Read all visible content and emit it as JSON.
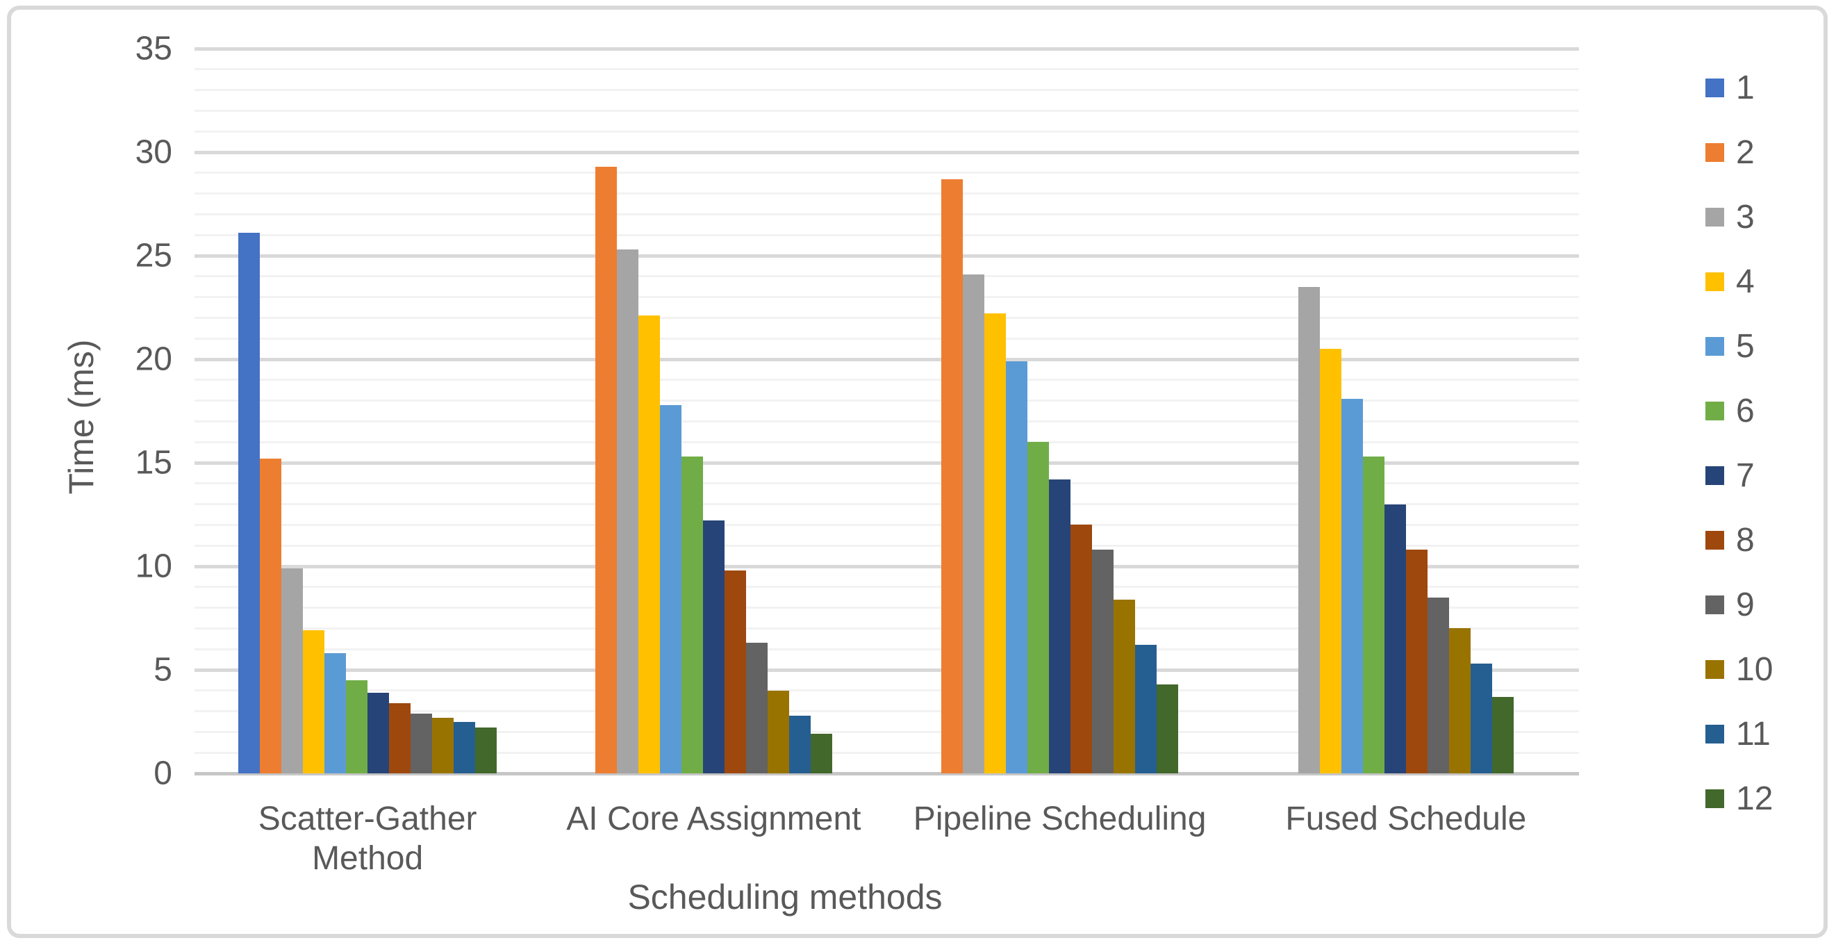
{
  "chart_data": {
    "type": "bar",
    "title": "",
    "xlabel": "Scheduling methods",
    "ylabel": "Time (ms)",
    "categories": [
      "Scatter-Gather Method",
      "AI Core Assignment",
      "Pipeline Scheduling",
      "Fused Schedule"
    ],
    "category_label_lines": [
      [
        "Scatter-Gather",
        "Method"
      ],
      [
        "AI Core Assignment"
      ],
      [
        "Pipeline Scheduling"
      ],
      [
        "Fused Schedule"
      ]
    ],
    "ylim": [
      0,
      35
    ],
    "y_tick_labels": [
      "0",
      "5",
      "10",
      "15",
      "20",
      "25",
      "30",
      "35"
    ],
    "y_major_step": 5,
    "y_minor_step": 1,
    "grid": true,
    "legend_position": "right",
    "series": [
      {
        "name": "1",
        "color": "#4472C4",
        "values": [
          26.1,
          null,
          null,
          null
        ]
      },
      {
        "name": "2",
        "color": "#ED7D31",
        "values": [
          15.2,
          29.3,
          28.7,
          null
        ]
      },
      {
        "name": "3",
        "color": "#A5A5A5",
        "values": [
          9.9,
          25.3,
          24.1,
          23.5
        ]
      },
      {
        "name": "4",
        "color": "#FFC000",
        "values": [
          6.9,
          22.1,
          22.2,
          20.5
        ]
      },
      {
        "name": "5",
        "color": "#5B9BD5",
        "values": [
          5.8,
          17.8,
          19.9,
          18.1
        ]
      },
      {
        "name": "6",
        "color": "#70AD47",
        "values": [
          4.5,
          15.3,
          16.0,
          15.3
        ]
      },
      {
        "name": "7",
        "color": "#264478",
        "values": [
          3.9,
          12.2,
          14.2,
          13.0
        ]
      },
      {
        "name": "8",
        "color": "#9E480E",
        "values": [
          3.4,
          9.8,
          12.0,
          10.8
        ]
      },
      {
        "name": "9",
        "color": "#636363",
        "values": [
          2.9,
          6.3,
          10.8,
          8.5
        ]
      },
      {
        "name": "10",
        "color": "#997300",
        "values": [
          2.7,
          4.0,
          8.4,
          7.0
        ]
      },
      {
        "name": "11",
        "color": "#255E91",
        "values": [
          2.5,
          2.8,
          6.2,
          5.3
        ]
      },
      {
        "name": "12",
        "color": "#43682B",
        "values": [
          2.2,
          1.9,
          4.3,
          3.7
        ]
      }
    ]
  },
  "styles": {
    "background": "#ffffff",
    "text_color": "#595959",
    "gridline_minor": "#f2f2f2",
    "gridline_major": "#d9d9d9",
    "axis_line": "#c6c6c6",
    "frame_border": "#d9d9d9"
  }
}
